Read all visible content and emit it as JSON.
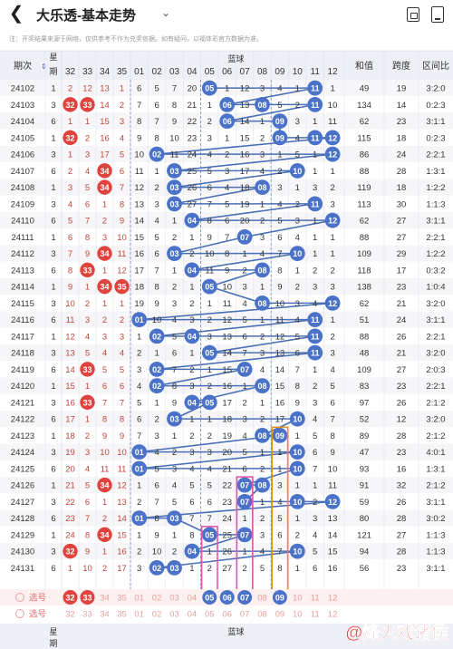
{
  "header": {
    "back_icon": "back-arrow-icon",
    "title": "大乐透-基本走势",
    "dropdown_icon": "chevron-down-icon",
    "icons": [
      "phone-screen-icon",
      "share-icon"
    ]
  },
  "notice": "注：开奖结果来源于网络，仅供参考不作为兑奖依据。如有疑问，以福体彩官方数据为准。",
  "columns": {
    "period": "期次",
    "week": "星期",
    "blue_title": "蓝球",
    "sum": "和值",
    "span": "跨度",
    "ratio": "区间比",
    "red_tail": [
      "32",
      "33",
      "34",
      "35"
    ],
    "blue": [
      "01",
      "02",
      "03",
      "04",
      "05",
      "06",
      "07",
      "08",
      "09",
      "10",
      "11",
      "12"
    ]
  },
  "rows": [
    {
      "p": "24102",
      "w": "1",
      "r": [
        "2",
        "12",
        "13",
        "1"
      ],
      "blue": [
        "6",
        "5",
        "7",
        "20",
        "05",
        "1",
        "12",
        "3",
        "4",
        "1",
        "11",
        "1"
      ],
      "s": "49",
      "sp": "19",
      "rt": "3:2:0"
    },
    {
      "p": "24103",
      "w": "3",
      "r": [
        "32",
        "33",
        "14",
        "2"
      ],
      "blue": [
        "7",
        "6",
        "8",
        "21",
        "1",
        "06",
        "13",
        "08",
        "5",
        "2",
        "11",
        "10"
      ],
      "s": "134",
      "sp": "14",
      "rt": "0:2:3"
    },
    {
      "p": "24104",
      "w": "6",
      "r": [
        "1",
        "1",
        "15",
        "3"
      ],
      "blue": [
        "8",
        "7",
        "9",
        "22",
        "2",
        "06",
        "14",
        "1",
        "09",
        "3",
        "1",
        "11"
      ],
      "s": "62",
      "sp": "23",
      "rt": "3:1:1"
    },
    {
      "p": "24105",
      "w": "1",
      "r": [
        "32",
        "2",
        "16",
        "4"
      ],
      "blue": [
        "9",
        "8",
        "10",
        "23",
        "3",
        "1",
        "15",
        "2",
        "09",
        "4",
        "11",
        "12"
      ],
      "s": "115",
      "sp": "18",
      "rt": "0:2:3"
    },
    {
      "p": "24106",
      "w": "3",
      "r": [
        "1",
        "3",
        "17",
        "5"
      ],
      "blue": [
        "10",
        "02",
        "11",
        "24",
        "4",
        "2",
        "16",
        "3",
        "1",
        "5",
        "1",
        "12"
      ],
      "s": "86",
      "sp": "24",
      "rt": "2:2:1"
    },
    {
      "p": "24107",
      "w": "6",
      "r": [
        "2",
        "4",
        "34",
        "6"
      ],
      "blue": [
        "11",
        "1",
        "03",
        "25",
        "5",
        "3",
        "17",
        "4",
        "2",
        "10",
        "1",
        "1"
      ],
      "s": "88",
      "sp": "28",
      "rt": "1:3:1"
    },
    {
      "p": "24108",
      "w": "1",
      "r": [
        "3",
        "5",
        "34",
        "7"
      ],
      "blue": [
        "12",
        "2",
        "03",
        "26",
        "6",
        "4",
        "18",
        "08",
        "3",
        "1",
        "3",
        "2"
      ],
      "s": "119",
      "sp": "18",
      "rt": "1:2:2"
    },
    {
      "p": "24109",
      "w": "3",
      "r": [
        "4",
        "6",
        "1",
        "8"
      ],
      "blue": [
        "13",
        "3",
        "03",
        "27",
        "7",
        "5",
        "19",
        "1",
        "4",
        "2",
        "11",
        "3"
      ],
      "s": "113",
      "sp": "30",
      "rt": "1:1:3"
    },
    {
      "p": "24110",
      "w": "6",
      "r": [
        "5",
        "7",
        "2",
        "9"
      ],
      "blue": [
        "14",
        "4",
        "1",
        "04",
        "8",
        "6",
        "20",
        "2",
        "5",
        "3",
        "1",
        "12"
      ],
      "s": "62",
      "sp": "27",
      "rt": "3:1:1"
    },
    {
      "p": "24111",
      "w": "1",
      "r": [
        "6",
        "8",
        "3",
        "10"
      ],
      "blue": [
        "15",
        "5",
        "2",
        "1",
        "9",
        "7",
        "07",
        "3",
        "6",
        "4",
        "1",
        "1"
      ],
      "s": "88",
      "sp": "27",
      "rt": "2:2:1"
    },
    {
      "p": "24112",
      "w": "3",
      "r": [
        "7",
        "9",
        "34",
        "11"
      ],
      "blue": [
        "16",
        "6",
        "03",
        "2",
        "10",
        "8",
        "1",
        "4",
        "7",
        "10",
        "1",
        "1"
      ],
      "s": "109",
      "sp": "29",
      "rt": "1:2:2"
    },
    {
      "p": "24113",
      "w": "6",
      "r": [
        "8",
        "33",
        "1",
        "12"
      ],
      "blue": [
        "17",
        "7",
        "1",
        "04",
        "11",
        "9",
        "2",
        "08",
        "8",
        "1",
        "2",
        "2"
      ],
      "s": "118",
      "sp": "17",
      "rt": "0:3:2"
    },
    {
      "p": "24114",
      "w": "1",
      "r": [
        "9",
        "1",
        "34",
        "35"
      ],
      "blue": [
        "18",
        "8",
        "2",
        "1",
        "05",
        "10",
        "3",
        "1",
        "9",
        "2",
        "3",
        "3"
      ],
      "s": "138",
      "sp": "23",
      "rt": "1:0:4"
    },
    {
      "p": "24115",
      "w": "3",
      "r": [
        "10",
        "2",
        "1",
        "1"
      ],
      "blue": [
        "19",
        "9",
        "3",
        "2",
        "1",
        "11",
        "4",
        "08",
        "10",
        "3",
        "4",
        "12"
      ],
      "s": "62",
      "sp": "21",
      "rt": "3:2:0"
    },
    {
      "p": "24116",
      "w": "6",
      "r": [
        "11",
        "3",
        "2",
        "2"
      ],
      "blue": [
        "01",
        "10",
        "4",
        "3",
        "2",
        "12",
        "5",
        "1",
        "11",
        "4",
        "11",
        "1"
      ],
      "s": "51",
      "sp": "24",
      "rt": "3:1:1"
    },
    {
      "p": "24117",
      "w": "1",
      "r": [
        "12",
        "4",
        "3",
        "3"
      ],
      "blue": [
        "1",
        "02",
        "5",
        "04",
        "3",
        "13",
        "6",
        "2",
        "12",
        "5",
        "11",
        "2"
      ],
      "s": "88",
      "sp": "26",
      "rt": "2:2:1"
    },
    {
      "p": "24118",
      "w": "3",
      "r": [
        "13",
        "5",
        "4",
        "4"
      ],
      "blue": [
        "2",
        "1",
        "6",
        "1",
        "05",
        "14",
        "7",
        "3",
        "13",
        "6",
        "11",
        "3"
      ],
      "s": "48",
      "sp": "21",
      "rt": "3:2:0"
    },
    {
      "p": "24119",
      "w": "6",
      "r": [
        "14",
        "33",
        "5",
        "5"
      ],
      "blue": [
        "3",
        "02",
        "7",
        "2",
        "1",
        "15",
        "07",
        "4",
        "14",
        "7",
        "1",
        "4"
      ],
      "s": "109",
      "sp": "27",
      "rt": "2:0:3"
    },
    {
      "p": "24120",
      "w": "1",
      "r": [
        "15",
        "1",
        "6",
        "6"
      ],
      "blue": [
        "4",
        "02",
        "8",
        "3",
        "2",
        "16",
        "1",
        "08",
        "15",
        "8",
        "2",
        "5"
      ],
      "s": "83",
      "sp": "23",
      "rt": "2:2:1"
    },
    {
      "p": "24121",
      "w": "3",
      "r": [
        "16",
        "33",
        "7",
        "7"
      ],
      "blue": [
        "5",
        "1",
        "9",
        "04",
        "05",
        "17",
        "2",
        "1",
        "16",
        "9",
        "3",
        "6"
      ],
      "s": "97",
      "sp": "26",
      "rt": "2:1:2"
    },
    {
      "p": "24122",
      "w": "6",
      "r": [
        "17",
        "1",
        "8",
        "8"
      ],
      "blue": [
        "6",
        "2",
        "03",
        "1",
        "1",
        "18",
        "3",
        "2",
        "17",
        "10",
        "4",
        "7"
      ],
      "s": "52",
      "sp": "12",
      "rt": "3:2:0"
    },
    {
      "p": "24123",
      "w": "1",
      "r": [
        "18",
        "2",
        "9",
        "9"
      ],
      "blue": [
        "7",
        "3",
        "1",
        "2",
        "2",
        "19",
        "4",
        "08",
        "09",
        "1",
        "5",
        "8"
      ],
      "s": "89",
      "sp": "28",
      "rt": "2:1:2"
    },
    {
      "p": "24124",
      "w": "3",
      "r": [
        "19",
        "3",
        "10",
        "10"
      ],
      "blue": [
        "01",
        "4",
        "2",
        "3",
        "3",
        "20",
        "5",
        "1",
        "1",
        "10",
        "6",
        "9"
      ],
      "s": "47",
      "sp": "23",
      "rt": "4:0:1"
    },
    {
      "p": "24125",
      "w": "6",
      "r": [
        "20",
        "4",
        "11",
        "11"
      ],
      "blue": [
        "01",
        "5",
        "3",
        "4",
        "4",
        "21",
        "6",
        "2",
        "1",
        "10",
        "7",
        "10"
      ],
      "s": "93",
      "sp": "16",
      "rt": "1:3:1"
    },
    {
      "p": "24126",
      "w": "1",
      "r": [
        "21",
        "5",
        "34",
        "12"
      ],
      "blue": [
        "1",
        "6",
        "4",
        "5",
        "5",
        "22",
        "07",
        "08",
        "3",
        "1",
        "1",
        "11"
      ],
      "s": "91",
      "sp": "32",
      "rt": "2:1:2"
    },
    {
      "p": "24127",
      "w": "3",
      "r": [
        "22",
        "6",
        "1",
        "13"
      ],
      "blue": [
        "2",
        "7",
        "5",
        "6",
        "6",
        "23",
        "07",
        "1",
        "4",
        "10",
        "2",
        "12"
      ],
      "s": "59",
      "sp": "26",
      "rt": "3:1:1"
    },
    {
      "p": "24128",
      "w": "6",
      "r": [
        "23",
        "7",
        "2",
        "14"
      ],
      "blue": [
        "01",
        "8",
        "03",
        "7",
        "7",
        "24",
        "1",
        "2",
        "5",
        "1",
        "3",
        "13"
      ],
      "s": "80",
      "sp": "28",
      "rt": "3:0:2"
    },
    {
      "p": "24129",
      "w": "1",
      "r": [
        "24",
        "8",
        "34",
        "15"
      ],
      "blue": [
        "1",
        "9",
        "1",
        "8",
        "05",
        "25",
        "07",
        "3",
        "6",
        "2",
        "4",
        "14"
      ],
      "s": "121",
      "sp": "27",
      "rt": "1:1:3"
    },
    {
      "p": "24130",
      "w": "3",
      "r": [
        "32",
        "9",
        "1",
        "16"
      ],
      "blue": [
        "2",
        "10",
        "2",
        "04",
        "1",
        "26",
        "1",
        "4",
        "7",
        "10",
        "5",
        "15"
      ],
      "s": "94",
      "sp": "28",
      "rt": "1:1:3"
    },
    {
      "p": "24131",
      "w": "6",
      "r": [
        "1",
        "10",
        "2",
        "17"
      ],
      "blue": [
        "3",
        "02",
        "03",
        "1",
        "2",
        "27",
        "2",
        "5",
        "8",
        "1",
        "6",
        "16"
      ],
      "s": "56",
      "sp": "23",
      "rt": "3:1:1"
    }
  ],
  "select_rows": [
    {
      "label": "选号",
      "red": [
        "32",
        "33",
        "34",
        "35"
      ],
      "blue": [
        "01",
        "02",
        "03",
        "04",
        "05",
        "06",
        "07",
        "08",
        "09",
        "10",
        "11",
        "12"
      ],
      "selected_red": [
        "32",
        "33"
      ],
      "selected_blue": [
        "05",
        "06",
        "07",
        "09"
      ]
    },
    {
      "label": "选号",
      "red": [
        "32",
        "33",
        "34",
        "35"
      ],
      "blue": [
        "01",
        "02",
        "03",
        "04",
        "05",
        "06",
        "07",
        "08",
        "09",
        "10",
        "11",
        "12"
      ]
    }
  ],
  "footer_title": "蓝球",
  "watermark": "@烽火戏诸侯",
  "colors": {
    "red_ball": "#e0433e",
    "blue_ball": "#4a72c8",
    "line": "#4a6fb5",
    "pink_box": "#e05aa8",
    "orange_box": "#e89020"
  }
}
